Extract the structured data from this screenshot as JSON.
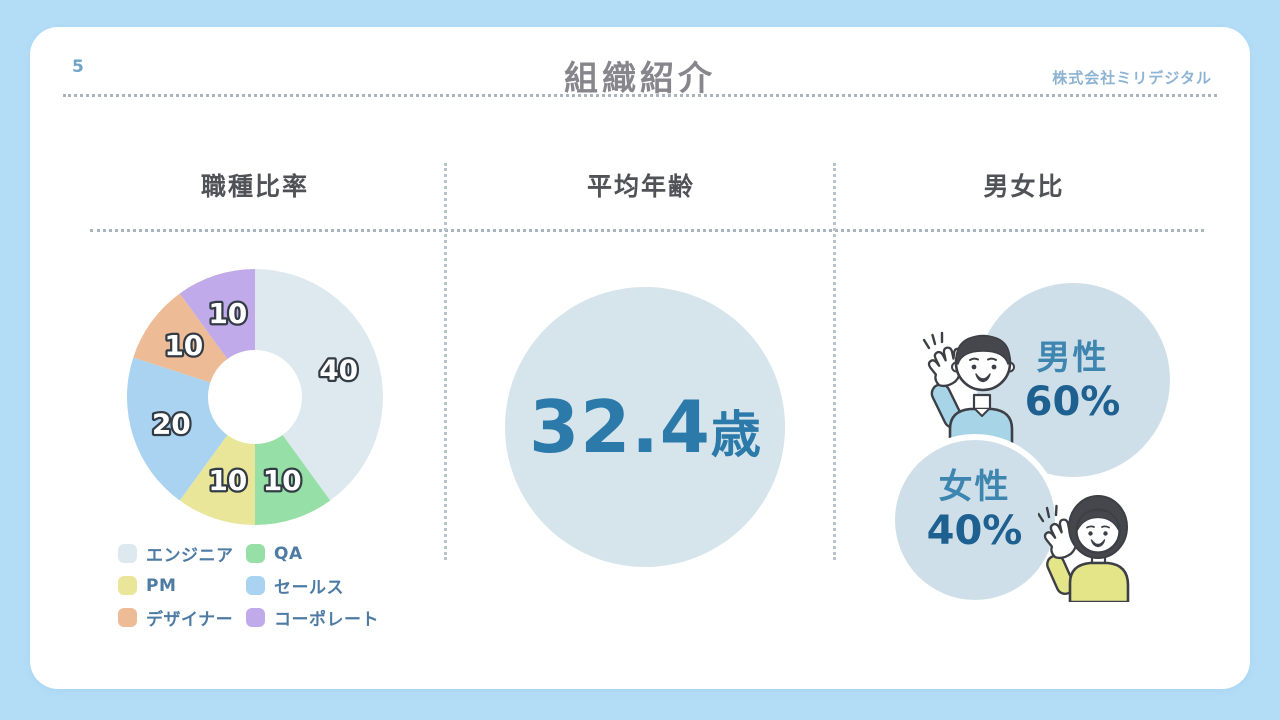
{
  "page": {
    "page_number": "5",
    "title": "組織紹介",
    "company": "株式会社ミリデジタル"
  },
  "colors": {
    "background": "#b3ddf7",
    "card": "#ffffff",
    "title_gray": "#86868c",
    "section_title_gray": "#515258",
    "accent_blue_mid": "#3e85af",
    "accent_blue_dark": "#1e608f",
    "age_text_blue": "#2b7aa9",
    "legend_text_blue": "#4d7ba3",
    "age_circle_fill": "#d6e4ec",
    "gender_circle_fill": "#cfdfe9"
  },
  "sections": {
    "jobs": {
      "title": "職種比率"
    },
    "age": {
      "title": "平均年齢",
      "value": "32.4",
      "unit": "歳"
    },
    "gender": {
      "title": "男女比",
      "male": {
        "label": "男性",
        "value": "60%"
      },
      "female": {
        "label": "女性",
        "value": "40%"
      }
    }
  },
  "chart_data": [
    {
      "type": "pie",
      "donut": true,
      "title": "職種比率",
      "start_angle_deg": 0,
      "direction": "clockwise",
      "categories": [
        "エンジニア",
        "QA",
        "PM",
        "セールス",
        "デザイナー",
        "コーポレート"
      ],
      "values": [
        40,
        10,
        10,
        20,
        10,
        10
      ],
      "colors": [
        "#dde9ef",
        "#96dfa7",
        "#e9e69a",
        "#a9d3f0",
        "#eebb97",
        "#c0aae9"
      ],
      "legend_position": "bottom",
      "data_labels": [
        "40",
        "10",
        "10",
        "20",
        "10",
        "10"
      ]
    },
    {
      "type": "pie",
      "title": "男女比",
      "categories": [
        "男性",
        "女性"
      ],
      "values": [
        60,
        40
      ],
      "unit": "%"
    }
  ],
  "illustrations": {
    "man": "waving man in light blue sweater",
    "woman": "waving woman in yellow sweater"
  }
}
